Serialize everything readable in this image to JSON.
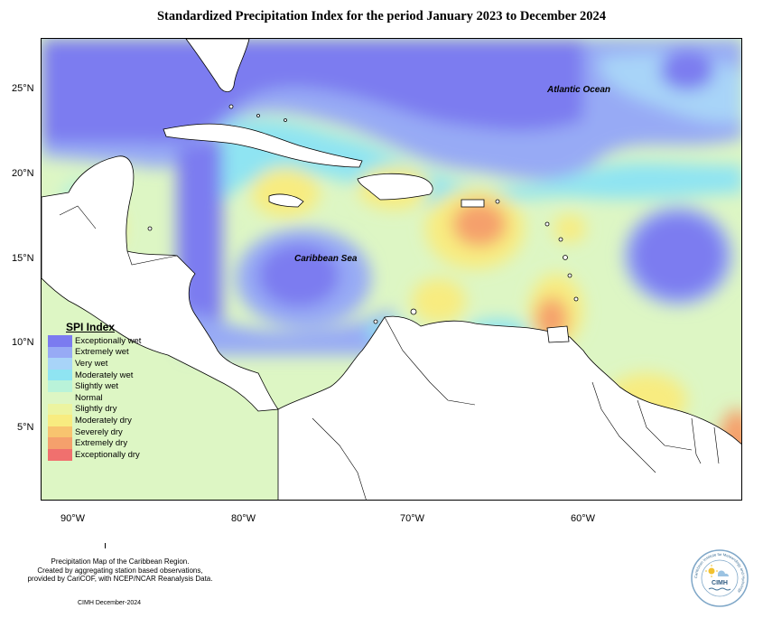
{
  "title": "Standardized Precipitation Index for the period January 2023 to December 2024",
  "axes": {
    "lat_ticks": [
      "25°N",
      "20°N",
      "15°N",
      "10°N",
      "5°N"
    ],
    "lon_ticks": [
      "90°W",
      "80°W",
      "70°W",
      "60°W"
    ]
  },
  "labels": {
    "atlantic": "Atlantic Ocean",
    "caribbean": "Caribbean Sea"
  },
  "legend": {
    "title": "SPI Index",
    "items": [
      {
        "label": "Exceptionally wet",
        "color": "#7b7bf0"
      },
      {
        "label": "Extremely wet",
        "color": "#97aaf5"
      },
      {
        "label": "Very wet",
        "color": "#a8d4f8"
      },
      {
        "label": "Moderately wet",
        "color": "#8fe4f2"
      },
      {
        "label": "Slightly wet",
        "color": "#b9f3d9"
      },
      {
        "label": "Normal",
        "color": "#ddf6c4"
      },
      {
        "label": "Slightly dry",
        "color": "#ecf4a0"
      },
      {
        "label": "Moderately dry",
        "color": "#f8ec80"
      },
      {
        "label": "Severely dry",
        "color": "#f8c46f"
      },
      {
        "label": "Extremely dry",
        "color": "#f5a06c"
      },
      {
        "label": "Exceptionally dry",
        "color": "#f0706e"
      }
    ]
  },
  "footer": {
    "line1": "Precipitation Map of the Caribbean Region.",
    "line2": "Created by aggregating station based observations,",
    "line3": "provided by CariCOF, with NCEP/NCAR Reanalysis Data.",
    "date": "CIMH December-2024"
  },
  "logo": {
    "text": "CIMH",
    "ring_text": "Caribbean Institute for Meteorology and Hydrology"
  }
}
